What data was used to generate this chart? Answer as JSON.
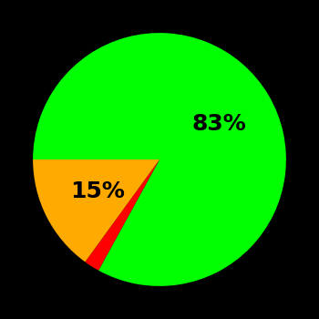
{
  "slices": [
    83,
    2,
    15
  ],
  "colors": [
    "#00ff00",
    "#ff0000",
    "#ffaa00"
  ],
  "labels": [
    "83%",
    "",
    "15%"
  ],
  "background_color": "#000000",
  "startangle": 180,
  "label_fontsize": 18,
  "label_fontweight": "bold",
  "label_colors": [
    "#000000",
    "#000000",
    "#000000"
  ],
  "label_distances": [
    0.55,
    0.5,
    0.55
  ]
}
